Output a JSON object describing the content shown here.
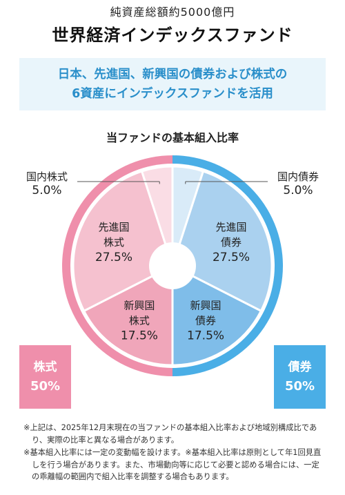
{
  "header": {
    "subtitle": "純資産総額約5000億円",
    "title": "世界経済インデックスファンド"
  },
  "banner": {
    "line1": "日本、先進国、新興国の債券および株式の",
    "line2": "6資産にインデックスファンドを活用"
  },
  "chart_data": {
    "type": "pie",
    "title": "当ファンドの基本組入比率",
    "slices": [
      {
        "label": "国内債券",
        "value": 5.0,
        "value_text": "5.0%",
        "color": "#d9ebf8"
      },
      {
        "label": "先進国債券",
        "label_lines": [
          "先進国",
          "債券"
        ],
        "value": 27.5,
        "value_text": "27.5%",
        "color": "#aad1ef"
      },
      {
        "label": "新興国債券",
        "label_lines": [
          "新興国",
          "債券"
        ],
        "value": 17.5,
        "value_text": "17.5%",
        "color": "#7fbde9"
      },
      {
        "label": "新興国株式",
        "label_lines": [
          "新興国",
          "株式"
        ],
        "value": 17.5,
        "value_text": "17.5%",
        "color": "#f0a6ba"
      },
      {
        "label": "先進国株式",
        "label_lines": [
          "先進国",
          "株式"
        ],
        "value": 27.5,
        "value_text": "27.5%",
        "color": "#f5c1cf"
      },
      {
        "label": "国内株式",
        "value": 5.0,
        "value_text": "5.0%",
        "color": "#fadde5"
      }
    ],
    "groups": [
      {
        "label": "債券",
        "value_text": "50%",
        "color": "#4aaee6"
      },
      {
        "label": "株式",
        "value_text": "50%",
        "color": "#ef8fab"
      }
    ]
  },
  "notes": [
    "※上記は、2025年12月末現在の当ファンドの基本組入比率および地域別構成比であり、実際の比率と異なる場合があります。",
    "※基本組入比率には一定の変動幅を設けます。※基本組入比率は原則として年1回見直しを行う場合があります。また、市場動向等に応じて必要と認める場合には、一定の乖離幅の範囲内で組入比率を調整する場合もあります。"
  ]
}
